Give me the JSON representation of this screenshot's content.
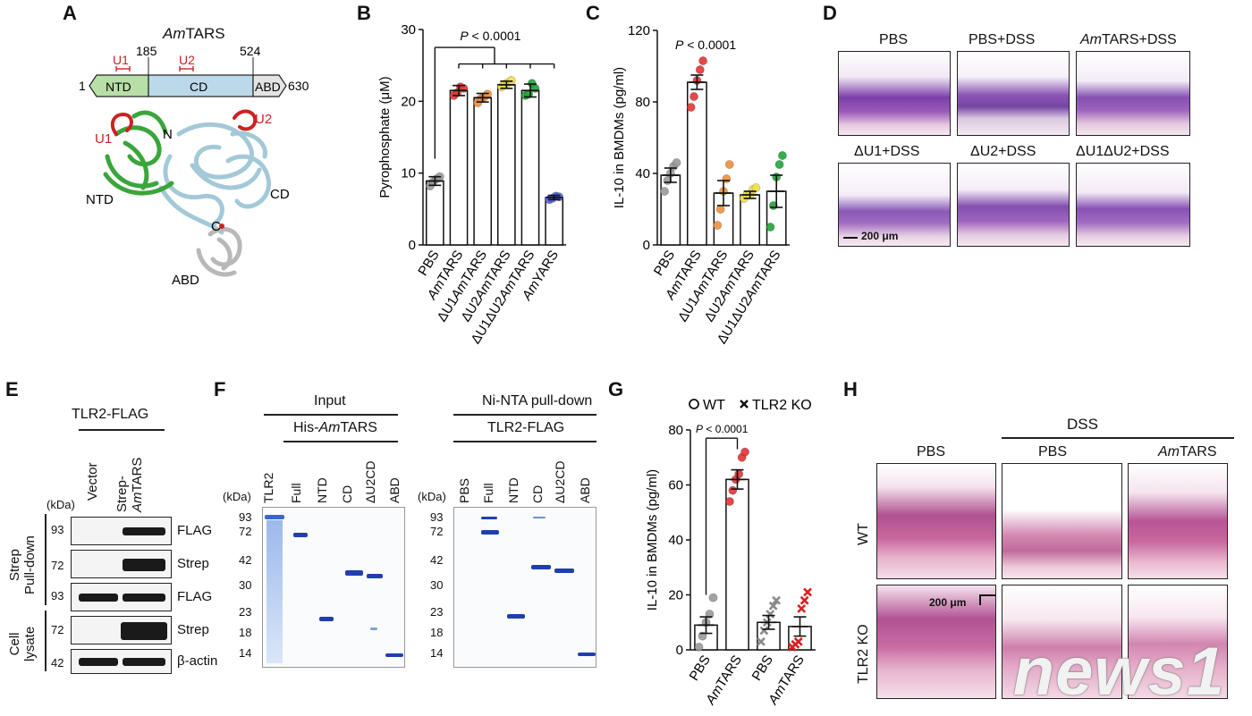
{
  "panels": {
    "A": {
      "label": "A",
      "title_em": "Am",
      "title_rest": "TARS",
      "domain_labels": [
        "NTD",
        "CD",
        "ABD"
      ],
      "positions": [
        "1",
        "185",
        "524",
        "630"
      ],
      "motifs": [
        "U1",
        "U2"
      ],
      "structure_labels": {
        "u1": "U1",
        "u2": "U2",
        "n": "N",
        "c": "C",
        "ntd": "NTD",
        "cd": "CD",
        "abd": "ABD"
      },
      "colors": {
        "ntd": "#3aa53a",
        "cd": "#a9cfe0",
        "abd": "#b8b8b8",
        "motif": "#cc2222"
      }
    },
    "B": {
      "label": "B",
      "pvalue": "P < 0.0001",
      "ylabel": "Pyrophosphate (μM)",
      "ticks": [
        "0",
        "10",
        "20",
        "30"
      ],
      "categories": [
        "PBS",
        "AmTARS",
        "ΔU1AmTARS",
        "ΔU2AmTARS",
        "ΔU1ΔU2AmTARS",
        "AmYARS"
      ]
    },
    "C": {
      "label": "C",
      "pvalue": "P < 0.0001",
      "ylabel": "IL-10 in BMDMs (pg/ml)",
      "ticks": [
        "0",
        "40",
        "80",
        "120"
      ],
      "categories": [
        "PBS",
        "AmTARS",
        "ΔU1AmTARS",
        "ΔU2AmTARS",
        "ΔU1ΔU2AmTARS"
      ]
    },
    "D": {
      "label": "D",
      "titles": [
        "PBS",
        "PBS+DSS",
        "AmTARS+DSS",
        "ΔU1+DSS",
        "ΔU2+DSS",
        "ΔU1ΔU2+DSS"
      ],
      "scale": "200 μm"
    },
    "E": {
      "label": "E",
      "header": "TLR2-FLAG",
      "lanes": [
        "Vector",
        "Strep-AmTARS"
      ],
      "kda": "(kDa)",
      "groups": [
        "Strep Pull-down",
        "Cell lysate"
      ],
      "rows": [
        {
          "mw": "93",
          "name": "FLAG"
        },
        {
          "mw": "72",
          "name": "Strep"
        },
        {
          "mw": "93",
          "name": "FLAG"
        },
        {
          "mw": "72",
          "name": "Strep"
        },
        {
          "mw": "42",
          "name": "β-actin"
        }
      ]
    },
    "F": {
      "label": "F",
      "left_header": "Input",
      "left_sub": "His-AmTARS",
      "left_lanes": [
        "TLR2",
        "Full",
        "NTD",
        "CD",
        "ΔU2CD",
        "ABD"
      ],
      "right_header": "Ni-NTA pull-down",
      "right_sub": "TLR2-FLAG",
      "right_lanes": [
        "PBS",
        "Full",
        "NTD",
        "CD",
        "ΔU2CD",
        "ABD"
      ],
      "kda": "(kDa)",
      "markers": [
        "93",
        "72",
        "42",
        "30",
        "23",
        "18",
        "14"
      ]
    },
    "G": {
      "label": "G",
      "legend_wt": "WT",
      "legend_ko": "TLR2 KO",
      "pvalue": "P < 0.0001",
      "ylabel": "IL-10 in BMDMs (pg/ml)",
      "ticks": [
        "0",
        "20",
        "40",
        "60",
        "80"
      ],
      "categories": [
        "PBS",
        "AmTARS",
        "PBS",
        "AmTARS"
      ]
    },
    "H": {
      "label": "H",
      "dss": "DSS",
      "cols": [
        "PBS",
        "PBS",
        "AmTARS"
      ],
      "rows": [
        "WT",
        "TLR2 KO"
      ],
      "scale": "200 μm"
    }
  },
  "watermark": "news1",
  "chart_data": [
    {
      "type": "bar",
      "panel": "B",
      "title": "",
      "categories": [
        "PBS",
        "AmTARS",
        "ΔU1AmTARS",
        "ΔU2AmTARS",
        "ΔU1ΔU2AmTARS",
        "AmYARS"
      ],
      "values": [
        8.9,
        21.5,
        20.5,
        22.3,
        21.5,
        6.6
      ],
      "errors": [
        0.6,
        0.7,
        0.6,
        0.5,
        0.9,
        0.3
      ],
      "points": [
        [
          8.2,
          8.8,
          9.2,
          9.5
        ],
        [
          20.8,
          21.2,
          22.0,
          21.8
        ],
        [
          19.8,
          20.4,
          20.6,
          21.0
        ],
        [
          22.0,
          22.4,
          22.6,
          22.9
        ],
        [
          20.8,
          21.0,
          22.5,
          21.8
        ],
        [
          6.3,
          6.5,
          6.8,
          6.7
        ]
      ],
      "point_colors": [
        "#9a9a9a",
        "#e33535",
        "#f0903a",
        "#f2e04a",
        "#22a33a",
        "#5566dd"
      ],
      "ylabel": "Pyrophosphate (μM)",
      "ylim": [
        0,
        30
      ],
      "annotation": "P < 0.0001"
    },
    {
      "type": "bar",
      "panel": "C",
      "title": "",
      "categories": [
        "PBS",
        "AmTARS",
        "ΔU1AmTARS",
        "ΔU2AmTARS",
        "ΔU1ΔU2AmTARS"
      ],
      "values": [
        39,
        91,
        29,
        28,
        30
      ],
      "errors": [
        4,
        4,
        7,
        2,
        9
      ],
      "points": [
        [
          30,
          36,
          40,
          44,
          46
        ],
        [
          77,
          83,
          92,
          98,
          103
        ],
        [
          11,
          20,
          30,
          37,
          45
        ],
        [
          26,
          28,
          28,
          31,
          32
        ],
        [
          10,
          22,
          38,
          45,
          50
        ]
      ],
      "point_colors": [
        "#9a9a9a",
        "#e33535",
        "#f0903a",
        "#f2e04a",
        "#22a33a"
      ],
      "ylabel": "IL-10 in BMDMs (pg/ml)",
      "ylim": [
        0,
        120
      ],
      "annotation": "P < 0.0001"
    },
    {
      "type": "bar",
      "panel": "G",
      "title": "",
      "categories": [
        "PBS",
        "AmTARS",
        "PBS",
        "AmTARS"
      ],
      "values": [
        9,
        62,
        10,
        8.5
      ],
      "errors": [
        3,
        3.5,
        2.5,
        3.5
      ],
      "points": [
        [
          1,
          5,
          10,
          13,
          19
        ],
        [
          54,
          58,
          62,
          64,
          70,
          72
        ],
        [
          3,
          7,
          10,
          13,
          16,
          18
        ],
        [
          1,
          2,
          3,
          15,
          18,
          21
        ]
      ],
      "point_colors": [
        "#9a9a9a",
        "#e33535",
        "#8a8a8a",
        "#d82020"
      ],
      "point_markers": [
        "circle",
        "circle",
        "cross",
        "cross"
      ],
      "legend": [
        "WT",
        "TLR2 KO"
      ],
      "ylabel": "IL-10 in BMDMs (pg/ml)",
      "ylim": [
        0,
        80
      ],
      "annotation": "P < 0.0001"
    }
  ]
}
